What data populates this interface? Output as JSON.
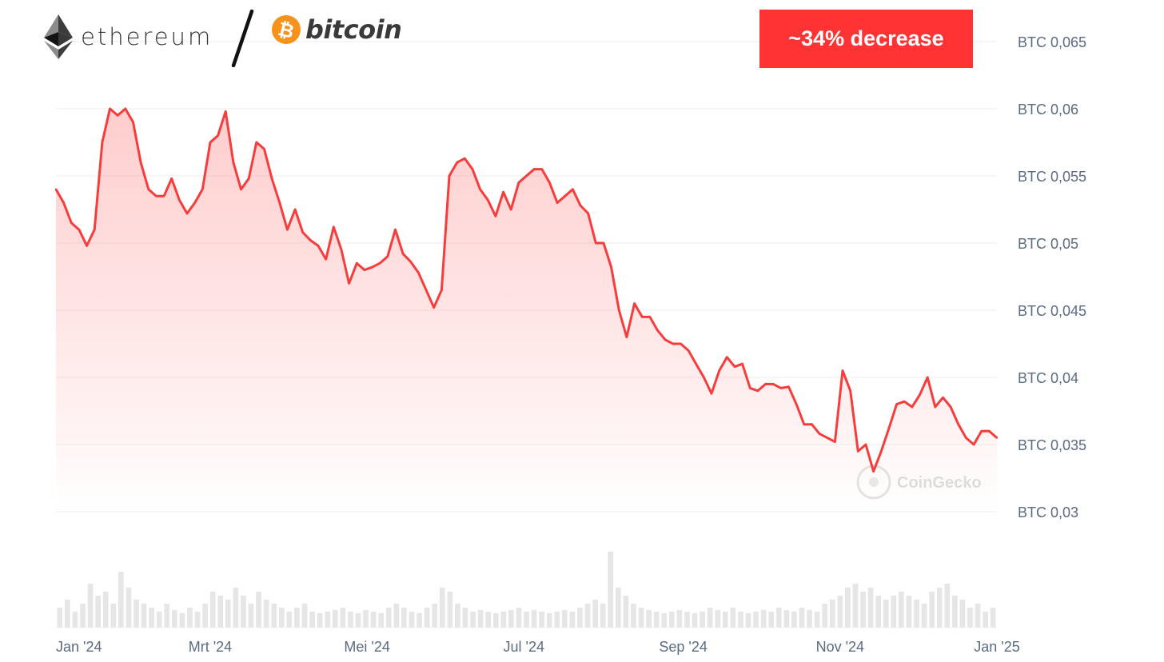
{
  "header": {
    "eth_label": "ethereum",
    "btc_label": "bitcoin",
    "badge_text": "~34% decrease",
    "badge_color": "#ff3333",
    "icons": [
      "ethereum-icon",
      "bitcoin-icon"
    ]
  },
  "watermark": {
    "label": "CoinGecko"
  },
  "chart_data": {
    "type": "area",
    "xlabel": "",
    "ylabel": "",
    "series": [
      {
        "name": "ETH/BTC",
        "color": "#f83c3c",
        "x": [
          "2024-01-01",
          "2024-01-04",
          "2024-01-07",
          "2024-01-10",
          "2024-01-13",
          "2024-01-16",
          "2024-01-19",
          "2024-01-22",
          "2024-01-25",
          "2024-01-28",
          "2024-01-31",
          "2024-02-03",
          "2024-02-06",
          "2024-02-09",
          "2024-02-12",
          "2024-02-15",
          "2024-02-18",
          "2024-02-21",
          "2024-02-24",
          "2024-02-27",
          "2024-03-01",
          "2024-03-04",
          "2024-03-07",
          "2024-03-10",
          "2024-03-13",
          "2024-03-16",
          "2024-03-19",
          "2024-03-22",
          "2024-03-25",
          "2024-03-28",
          "2024-03-31",
          "2024-04-03",
          "2024-04-06",
          "2024-04-09",
          "2024-04-12",
          "2024-04-15",
          "2024-04-18",
          "2024-04-21",
          "2024-04-24",
          "2024-04-27",
          "2024-04-30",
          "2024-05-03",
          "2024-05-06",
          "2024-05-09",
          "2024-05-12",
          "2024-05-15",
          "2024-05-18",
          "2024-05-21",
          "2024-05-24",
          "2024-05-27",
          "2024-05-30",
          "2024-06-02",
          "2024-06-05",
          "2024-06-08",
          "2024-06-11",
          "2024-06-14",
          "2024-06-17",
          "2024-06-20",
          "2024-06-23",
          "2024-06-26",
          "2024-06-29",
          "2024-07-02",
          "2024-07-05",
          "2024-07-08",
          "2024-07-11",
          "2024-07-14",
          "2024-07-17",
          "2024-07-20",
          "2024-07-23",
          "2024-07-26",
          "2024-07-29",
          "2024-08-01",
          "2024-08-04",
          "2024-08-07",
          "2024-08-10",
          "2024-08-13",
          "2024-08-16",
          "2024-08-19",
          "2024-08-22",
          "2024-08-25",
          "2024-08-28",
          "2024-08-31",
          "2024-09-03",
          "2024-09-06",
          "2024-09-09",
          "2024-09-12",
          "2024-09-15",
          "2024-09-18",
          "2024-09-21",
          "2024-09-24",
          "2024-09-27",
          "2024-09-30",
          "2024-10-03",
          "2024-10-06",
          "2024-10-09",
          "2024-10-12",
          "2024-10-15",
          "2024-10-18",
          "2024-10-21",
          "2024-10-24",
          "2024-10-27",
          "2024-10-30",
          "2024-11-02",
          "2024-11-05",
          "2024-11-08",
          "2024-11-11",
          "2024-11-14",
          "2024-11-17",
          "2024-11-20",
          "2024-11-23",
          "2024-11-26",
          "2024-11-29",
          "2024-12-02",
          "2024-12-05",
          "2024-12-08",
          "2024-12-11",
          "2024-12-14",
          "2024-12-17",
          "2024-12-20",
          "2024-12-23",
          "2024-12-26",
          "2024-12-29",
          "2025-01-01"
        ],
        "y": [
          0.054,
          0.053,
          0.0515,
          0.051,
          0.0498,
          0.051,
          0.0575,
          0.06,
          0.0595,
          0.06,
          0.059,
          0.056,
          0.054,
          0.0535,
          0.0535,
          0.0548,
          0.0532,
          0.0522,
          0.053,
          0.054,
          0.0575,
          0.058,
          0.0598,
          0.056,
          0.054,
          0.0548,
          0.0575,
          0.057,
          0.0548,
          0.053,
          0.051,
          0.0525,
          0.0508,
          0.0502,
          0.0498,
          0.0488,
          0.0512,
          0.0495,
          0.047,
          0.0485,
          0.048,
          0.0482,
          0.0485,
          0.049,
          0.051,
          0.0492,
          0.0486,
          0.0478,
          0.0465,
          0.0452,
          0.0465,
          0.055,
          0.056,
          0.0563,
          0.0555,
          0.054,
          0.0532,
          0.052,
          0.0538,
          0.0525,
          0.0545,
          0.055,
          0.0555,
          0.0555,
          0.0545,
          0.053,
          0.0535,
          0.054,
          0.0528,
          0.0522,
          0.05,
          0.05,
          0.0482,
          0.045,
          0.043,
          0.0455,
          0.0445,
          0.0445,
          0.0435,
          0.0428,
          0.0425,
          0.0425,
          0.042,
          0.041,
          0.04,
          0.0388,
          0.0405,
          0.0415,
          0.0408,
          0.041,
          0.0392,
          0.039,
          0.0395,
          0.0395,
          0.0392,
          0.0393,
          0.038,
          0.0365,
          0.0365,
          0.0358,
          0.0355,
          0.0352,
          0.0405,
          0.039,
          0.0345,
          0.035,
          0.033,
          0.0345,
          0.0362,
          0.038,
          0.0382,
          0.0378,
          0.0387,
          0.04,
          0.0378,
          0.0385,
          0.0378,
          0.0365,
          0.0355,
          0.035,
          0.036,
          0.036,
          0.0355
        ]
      }
    ],
    "y_ticks": [
      "BTC 0,065",
      "BTC 0,06",
      "BTC 0,055",
      "BTC 0,05",
      "BTC 0,045",
      "BTC 0,04",
      "BTC 0,035",
      "BTC 0,03"
    ],
    "y_tick_values": [
      0.065,
      0.06,
      0.055,
      0.05,
      0.045,
      0.04,
      0.035,
      0.03
    ],
    "ylim": [
      0.03,
      0.065
    ],
    "x_ticks": [
      "Jan '24",
      "Mrt '24",
      "Mei '24",
      "Jul '24",
      "Sep '24",
      "Nov '24",
      "Jan '25"
    ],
    "x_tick_dates": [
      "2024-01-01",
      "2024-03-01",
      "2024-05-01",
      "2024-07-01",
      "2024-09-01",
      "2024-11-01",
      "2025-01-01"
    ],
    "xlim": [
      "2024-01-01",
      "2025-01-01"
    ],
    "volume_bars": [
      0.25,
      0.35,
      0.2,
      0.3,
      0.55,
      0.4,
      0.45,
      0.3,
      0.7,
      0.5,
      0.35,
      0.3,
      0.25,
      0.2,
      0.3,
      0.22,
      0.18,
      0.25,
      0.2,
      0.3,
      0.45,
      0.4,
      0.35,
      0.5,
      0.4,
      0.3,
      0.45,
      0.35,
      0.3,
      0.25,
      0.2,
      0.25,
      0.3,
      0.2,
      0.18,
      0.2,
      0.22,
      0.25,
      0.2,
      0.18,
      0.22,
      0.2,
      0.18,
      0.25,
      0.3,
      0.25,
      0.2,
      0.18,
      0.25,
      0.3,
      0.5,
      0.45,
      0.3,
      0.25,
      0.2,
      0.22,
      0.2,
      0.18,
      0.2,
      0.22,
      0.25,
      0.2,
      0.22,
      0.2,
      0.18,
      0.2,
      0.22,
      0.2,
      0.25,
      0.3,
      0.35,
      0.3,
      0.95,
      0.5,
      0.4,
      0.3,
      0.25,
      0.22,
      0.2,
      0.18,
      0.2,
      0.22,
      0.2,
      0.18,
      0.2,
      0.25,
      0.22,
      0.2,
      0.25,
      0.2,
      0.18,
      0.2,
      0.22,
      0.2,
      0.25,
      0.22,
      0.2,
      0.25,
      0.22,
      0.2,
      0.3,
      0.35,
      0.4,
      0.5,
      0.55,
      0.45,
      0.5,
      0.4,
      0.35,
      0.4,
      0.45,
      0.4,
      0.35,
      0.3,
      0.45,
      0.5,
      0.55,
      0.4,
      0.35,
      0.25,
      0.3,
      0.2,
      0.25
    ],
    "grid": true,
    "legend": "none"
  }
}
